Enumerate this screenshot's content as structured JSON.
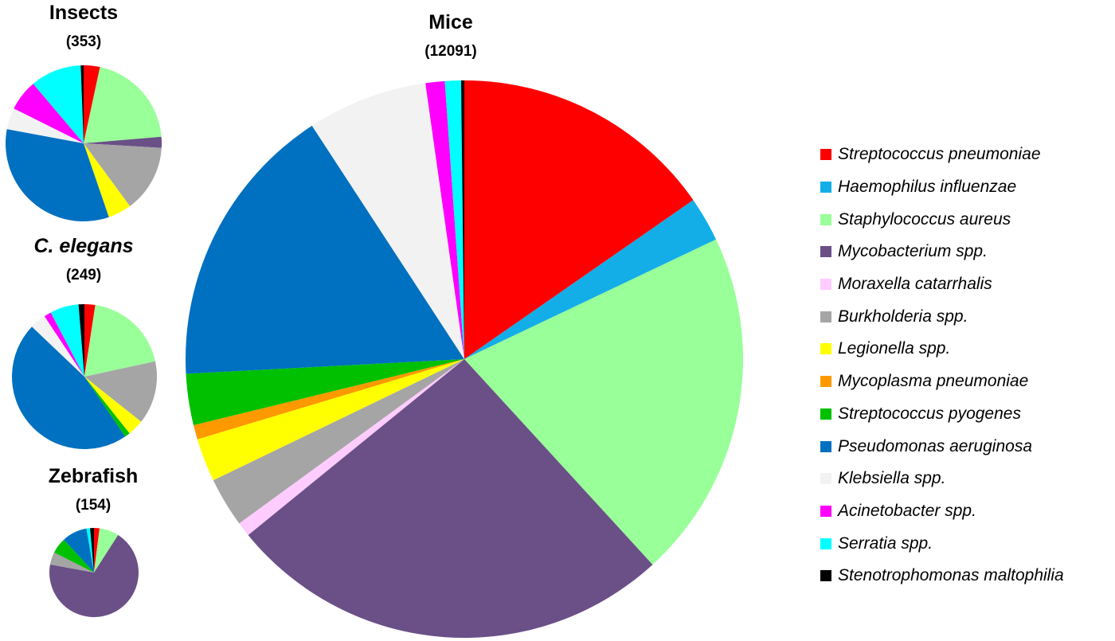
{
  "chart_data": [
    {
      "type": "pie",
      "title": "Insects",
      "count_label": "(353)",
      "total": 353,
      "slices": [
        {
          "name": "Streptococcus pneumoniae",
          "percent": 3.4
        },
        {
          "name": "Haemophilus influenzae",
          "percent": 0
        },
        {
          "name": "Staphylococcus aureus",
          "percent": 20.5
        },
        {
          "name": "Mycobacterium spp.",
          "percent": 2.3
        },
        {
          "name": "Moraxella catarrhalis",
          "percent": 0
        },
        {
          "name": "Burkholderia spp.",
          "percent": 14.1
        },
        {
          "name": "Legionella spp.",
          "percent": 4.9
        },
        {
          "name": "Mycoplasma pneumoniae",
          "percent": 0
        },
        {
          "name": "Streptococcus pyogenes",
          "percent": 0
        },
        {
          "name": "Pseudomonas aeruginosa",
          "percent": 33.5
        },
        {
          "name": "Klebsiella spp.",
          "percent": 4.5
        },
        {
          "name": "Acinetobacter spp.",
          "percent": 6.5
        },
        {
          "name": "Serratia spp.",
          "percent": 10.7
        },
        {
          "name": "Stenotrophomonas maltophilia",
          "percent": 0.6
        }
      ]
    },
    {
      "type": "pie",
      "title": "C. elegans",
      "count_label": "(249)",
      "total": 249,
      "slices": [
        {
          "name": "Streptococcus pneumoniae",
          "percent": 2.4
        },
        {
          "name": "Haemophilus influenzae",
          "percent": 0
        },
        {
          "name": "Staphylococcus aureus",
          "percent": 19.2
        },
        {
          "name": "Mycobacterium spp.",
          "percent": 0
        },
        {
          "name": "Moraxella catarrhalis",
          "percent": 0
        },
        {
          "name": "Burkholderia spp.",
          "percent": 14.1
        },
        {
          "name": "Legionella spp.",
          "percent": 3.6
        },
        {
          "name": "Mycoplasma pneumoniae",
          "percent": 0
        },
        {
          "name": "Streptococcus pyogenes",
          "percent": 1.2
        },
        {
          "name": "Pseudomonas aeruginosa",
          "percent": 46.6
        },
        {
          "name": "Klebsiella spp.",
          "percent": 3.6
        },
        {
          "name": "Acinetobacter spp.",
          "percent": 1.6
        },
        {
          "name": "Serratia spp.",
          "percent": 6.4
        },
        {
          "name": "Stenotrophomonas maltophilia",
          "percent": 1.3
        }
      ]
    },
    {
      "type": "pie",
      "title": "Zebrafish",
      "count_label": "(154)",
      "total": 154,
      "slices": [
        {
          "name": "Streptococcus pneumoniae",
          "percent": 2.0
        },
        {
          "name": "Haemophilus influenzae",
          "percent": 0
        },
        {
          "name": "Staphylococcus aureus",
          "percent": 7.1
        },
        {
          "name": "Mycobacterium spp.",
          "percent": 68.8
        },
        {
          "name": "Moraxella catarrhalis",
          "percent": 0
        },
        {
          "name": "Burkholderia spp.",
          "percent": 4.5
        },
        {
          "name": "Legionella spp.",
          "percent": 0
        },
        {
          "name": "Mycoplasma pneumoniae",
          "percent": 0
        },
        {
          "name": "Streptococcus pyogenes",
          "percent": 5.8
        },
        {
          "name": "Pseudomonas aeruginosa",
          "percent": 9.1
        },
        {
          "name": "Klebsiella spp.",
          "percent": 0
        },
        {
          "name": "Acinetobacter spp.",
          "percent": 0
        },
        {
          "name": "Serratia spp.",
          "percent": 1.3
        },
        {
          "name": "Stenotrophomonas maltophilia",
          "percent": 1.4
        }
      ]
    },
    {
      "type": "pie",
      "title": "Mice",
      "count_label": "(12091)",
      "total": 12091,
      "slices": [
        {
          "name": "Streptococcus pneumoniae",
          "percent": 16.5
        },
        {
          "name": "Haemophilus influenzae",
          "percent": 2.8
        },
        {
          "name": "Staphylococcus aureus",
          "percent": 21.8
        },
        {
          "name": "Mycobacterium spp.",
          "percent": 27.9
        },
        {
          "name": "Moraxella catarrhalis",
          "percent": 0.9
        },
        {
          "name": "Burkholderia spp.",
          "percent": 3.1
        },
        {
          "name": "Legionella spp.",
          "percent": 2.7
        },
        {
          "name": "Mycoplasma pneumoniae",
          "percent": 0.9
        },
        {
          "name": "Streptococcus pyogenes",
          "percent": 3.2
        },
        {
          "name": "Pseudomonas aeruginosa",
          "percent": 17.9
        },
        {
          "name": "Klebsiella spp.",
          "percent": 7.5
        },
        {
          "name": "Acinetobacter spp.",
          "percent": 1.2
        },
        {
          "name": "Serratia spp.",
          "percent": 1.0
        },
        {
          "name": "Stenotrophomonas maltophilia",
          "percent": 0.2
        }
      ]
    }
  ],
  "legend": [
    {
      "name": "Streptococcus pneumoniae",
      "color": "#ff0000"
    },
    {
      "name": "Haemophilus influenzae",
      "color": "#13aee8"
    },
    {
      "name": "Staphylococcus aureus",
      "color": "#99ff99"
    },
    {
      "name": "Mycobacterium spp.",
      "color": "#6a5087"
    },
    {
      "name": "Moraxella catarrhalis",
      "color": "#ffccff"
    },
    {
      "name": "Burkholderia spp.",
      "color": "#a5a5a5"
    },
    {
      "name": "Legionella spp.",
      "color": "#ffff00"
    },
    {
      "name": "Mycoplasma pneumoniae",
      "color": "#ff9900"
    },
    {
      "name": "Streptococcus pyogenes",
      "color": "#00c000"
    },
    {
      "name": "Pseudomonas aeruginosa",
      "color": "#0070c0"
    },
    {
      "name": "Klebsiella spp.",
      "color": "#f2f2f2"
    },
    {
      "name": "Acinetobacter spp.",
      "color": "#ff00ff"
    },
    {
      "name": "Serratia spp.",
      "color": "#00ffff"
    },
    {
      "name": "Stenotrophomonas maltophilia",
      "color": "#000000"
    }
  ]
}
